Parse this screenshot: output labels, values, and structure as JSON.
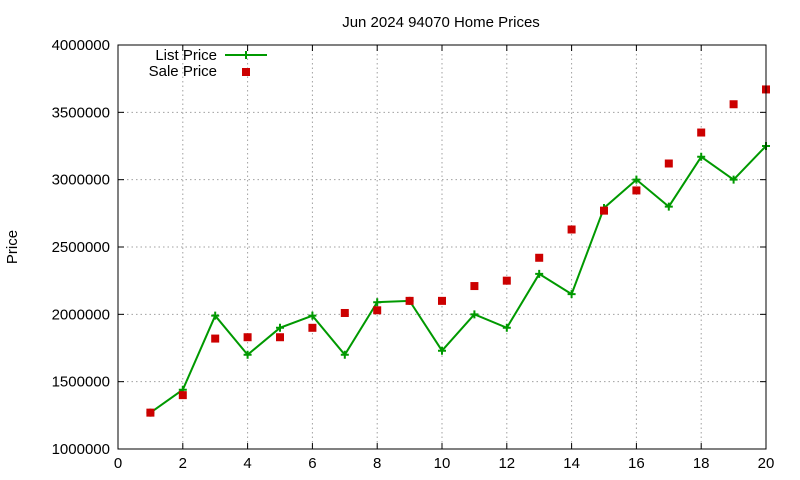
{
  "chart_data": {
    "type": "line",
    "title": "Jun 2024 94070 Home Prices",
    "xlabel": "",
    "ylabel": "Price",
    "xlim": [
      0,
      20
    ],
    "ylim": [
      1000000,
      4000000
    ],
    "x_ticks": [
      0,
      2,
      4,
      6,
      8,
      10,
      12,
      14,
      16,
      18,
      20
    ],
    "y_ticks": [
      1000000,
      1500000,
      2000000,
      2500000,
      3000000,
      3500000,
      4000000
    ],
    "x_tick_labels": [
      "0",
      "2",
      "4",
      "6",
      "8",
      "10",
      "12",
      "14",
      "16",
      "18",
      "20"
    ],
    "y_tick_labels": [
      "1000000",
      "1500000",
      "2000000",
      "2500000",
      "3000000",
      "3500000",
      "4000000"
    ],
    "grid": true,
    "legend_position": "top-left",
    "x": [
      1,
      2,
      3,
      4,
      5,
      6,
      7,
      8,
      9,
      10,
      11,
      12,
      13,
      14,
      15,
      16,
      17,
      18,
      19,
      20
    ],
    "series": [
      {
        "name": "List Price",
        "style": "linespoints",
        "marker": "plus",
        "color": "#009900",
        "values": [
          1270000,
          1440000,
          1990000,
          1700000,
          1900000,
          1990000,
          1700000,
          2090000,
          2100000,
          1730000,
          2000000,
          1900000,
          2300000,
          2150000,
          2790000,
          3000000,
          2800000,
          3170000,
          3000000,
          3250000
        ]
      },
      {
        "name": "Sale Price",
        "style": "points",
        "marker": "square",
        "color": "#cc0000",
        "values": [
          1270000,
          1400000,
          1820000,
          1830000,
          1830000,
          1900000,
          2010000,
          2030000,
          2100000,
          2100000,
          2210000,
          2250000,
          2420000,
          2630000,
          2770000,
          2920000,
          3120000,
          3350000,
          3560000,
          3670000
        ]
      }
    ]
  }
}
